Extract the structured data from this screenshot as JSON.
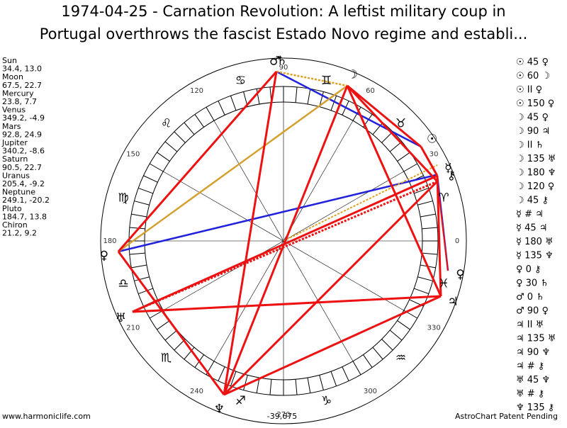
{
  "header": {
    "title_lines": [
      "1974-04-25 - Carnation Revolution: A leftist military coup in",
      "Portugal overthrows the fascist Estado Novo regime and establi..."
    ]
  },
  "planets": [
    {
      "name": "Sun",
      "position": "34.4, 13.0",
      "glyph": "☉"
    },
    {
      "name": "Moon",
      "position": "67.5, 22.7",
      "glyph": "☽"
    },
    {
      "name": "Mercury",
      "position": "23.8, 7.7",
      "glyph": "☿"
    },
    {
      "name": "Venus",
      "position": "349.2, -4.9",
      "glyph": "♀"
    },
    {
      "name": "Mars",
      "position": "92.8, 24.9",
      "glyph": "♂"
    },
    {
      "name": "Jupiter",
      "position": "340.2, -8.6",
      "glyph": "♃"
    },
    {
      "name": "Saturn",
      "position": "90.5, 22.7",
      "glyph": "♄"
    },
    {
      "name": "Uranus",
      "position": "205.4, -9.2",
      "glyph": "♅"
    },
    {
      "name": "Neptune",
      "position": "249.1, -20.2",
      "glyph": "♆"
    },
    {
      "name": "Pluto",
      "position": "184.7, 13.8",
      "glyph": "♀"
    },
    {
      "name": "Chiron",
      "position": "21.2, 9.2",
      "glyph": "⚷"
    }
  ],
  "degree_labels": [
    "0",
    "30",
    "60",
    "90",
    "120",
    "150",
    "180",
    "210",
    "240",
    "270",
    "300",
    "330"
  ],
  "signs": [
    "♈",
    "♉",
    "♊",
    "♋",
    "♌",
    "♍",
    "♎",
    "♏",
    "♐",
    "♑",
    "♒",
    "♓"
  ],
  "aspects": [
    "☉ 45 ♀",
    "☉ 60 ☽",
    "☉ II ♀",
    "☉ 150 ♀",
    "☽ 45 ♀",
    "☽ 90 ♃",
    "☽ II ♄",
    "☽ 135 ♅",
    "☽ 180 ♆",
    "☽ 120 ♀",
    "☽ 45 ⚷",
    "☿ # ♃",
    "☿ 45 ♃",
    "☿ 180 ♅",
    "☿ 135 ♆",
    "♀ 0 ⚷",
    "♀ 30 ♄",
    "♂ 0 ♄",
    "♂ 90 ♀",
    "♃ II ♅",
    "♃ 135 ♅",
    "♃ 90 ♆",
    "♃ # ⚷",
    "♅ 45 ♆",
    "♅ # ⚷",
    "♆ 135 ⚷"
  ],
  "footer": {
    "site": "www.harmoniclife.com",
    "number": "-39,675",
    "notice": "AstroChart Patent Pending"
  }
}
